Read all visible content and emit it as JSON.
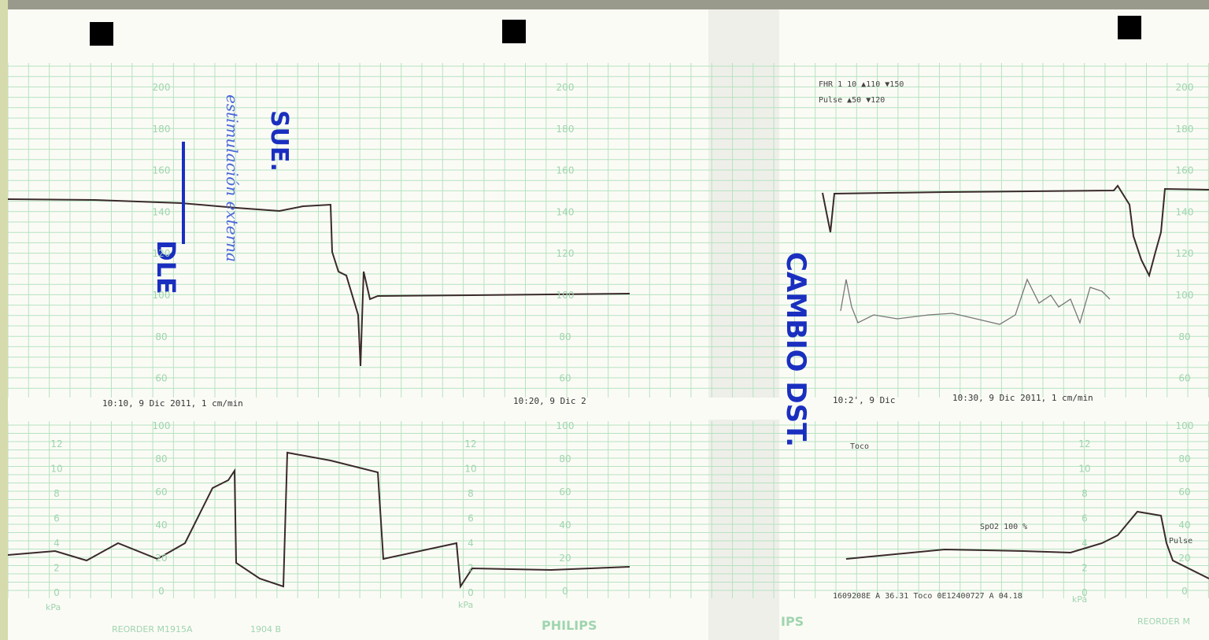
{
  "strip": {
    "fhr_scale_labels": [
      "200",
      "180",
      "160",
      "140",
      "120",
      "100",
      "80",
      "60"
    ],
    "toco_scale_labels": [
      "100",
      "80",
      "60",
      "40",
      "20",
      "0"
    ],
    "kpa_scale_labels": [
      "12",
      "10",
      "8",
      "6",
      "4",
      "2",
      "0"
    ],
    "timestamps": [
      "10:10, 9 Dic 2011, 1 cm/min",
      "10:20, 9 Dic 2",
      "10:2', 9 Dic",
      "10:30, 9 Dic 2011, 1 cm/min"
    ],
    "legend": [
      "FHR 1 10 ▲110 ▼150",
      "Pulse ▲50 ▼120"
    ],
    "handwritten": [
      "SUE.",
      "DLE",
      "estimulación externa",
      "CAMBIO DST."
    ],
    "labels": {
      "toco": "Toco",
      "spo2": "SpO2 100 %",
      "pulse": "Pulse",
      "kpa": "kPa",
      "brand": "PHILIPS",
      "brand_partial": "IPS",
      "reorder": "REORDER M1915A",
      "code": "1904 B",
      "footer": "1609208E A 36.31 Toco 0E12400727 A 04.18",
      "reorder_right": "REORDER M"
    }
  }
}
